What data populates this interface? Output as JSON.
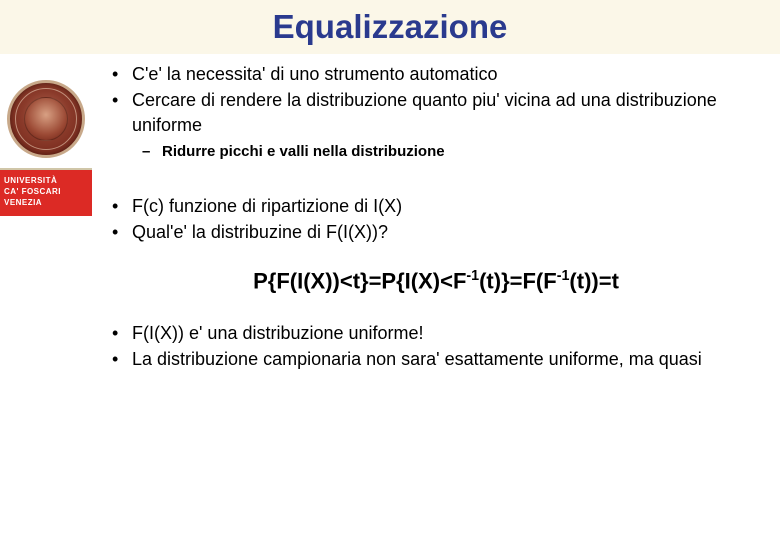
{
  "title": "Equalizzazione",
  "brand": {
    "line1": "UNIVERSITÀ",
    "line2": "CA' FOSCARI",
    "line3": "VENEZIA"
  },
  "section1": {
    "b1": "C'e' la necessita' di uno strumento automatico",
    "b2": "Cercare di rendere la distribuzione quanto piu' vicina ad una distribuzione uniforme",
    "sub1": "Ridurre picchi e valli nella distribuzione"
  },
  "section2": {
    "b1": "F(c) funzione di ripartizione di I(X)",
    "b2": "Qual'e' la distribuzine di F(I(X))?"
  },
  "formula": {
    "p1": "P{F(I(X))<t}=P{I(X)<F",
    "sup1": "-1",
    "p2": "(t)}=F(F",
    "sup2": "-1",
    "p3": "(t))=t"
  },
  "section3": {
    "b1": "F(I(X)) e' una distribuzione uniforme!",
    "b2": "La distribuzione campionaria non sara' esattamente uniforme, ma quasi"
  }
}
